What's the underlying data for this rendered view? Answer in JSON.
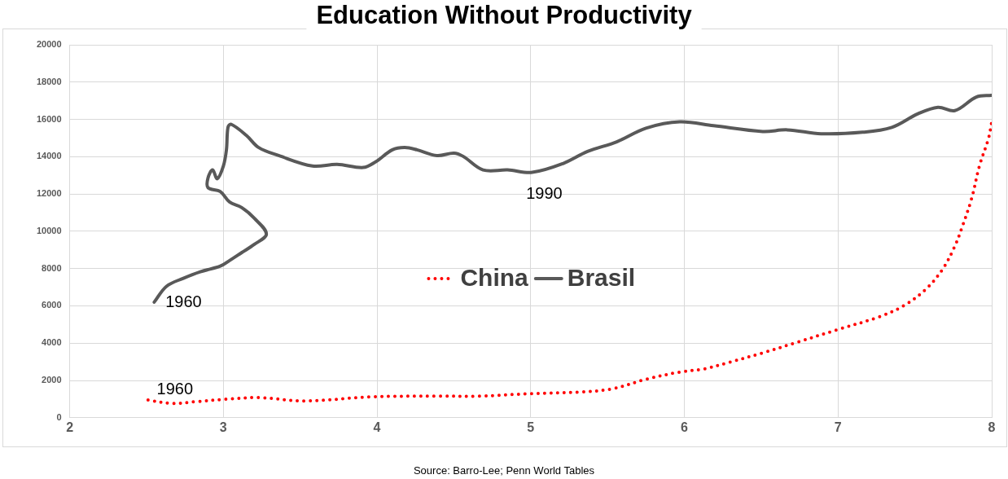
{
  "chart_data": {
    "type": "line",
    "title": "Education Without Productivity",
    "xlim": [
      2,
      8
    ],
    "xticks": [
      2,
      3,
      4,
      5,
      6,
      7,
      8
    ],
    "ylim": [
      0,
      20000
    ],
    "yticks": [
      0,
      2000,
      4000,
      6000,
      8000,
      10000,
      12000,
      14000,
      16000,
      18000,
      20000
    ],
    "grid": true,
    "legend": "center",
    "marker": "none",
    "series": [
      {
        "name": "China",
        "color": "#ff0000",
        "line_style": "dotted",
        "x": [
          2.51,
          2.66,
          2.82,
          3.01,
          3.23,
          3.53,
          3.96,
          4.39,
          4.67,
          4.99,
          5.32,
          5.53,
          5.75,
          5.97,
          6.13,
          6.29,
          6.51,
          6.73,
          7.0,
          7.27,
          7.43,
          7.57,
          7.68,
          7.76,
          7.81,
          7.87,
          7.92,
          7.98,
          8.0
        ],
        "values": [
          950,
          770,
          860,
          990,
          1080,
          900,
          1120,
          1160,
          1160,
          1290,
          1380,
          1550,
          2060,
          2450,
          2620,
          2970,
          3480,
          4040,
          4730,
          5420,
          6020,
          6880,
          7960,
          9200,
          10280,
          11780,
          13500,
          15010,
          15870
        ]
      },
      {
        "name": "Brasil",
        "color": "#595959",
        "line_style": "solid",
        "x": [
          2.55,
          2.63,
          2.74,
          2.85,
          2.98,
          3.04,
          3.12,
          3.2,
          3.28,
          3.2,
          3.12,
          3.04,
          2.98,
          2.9,
          2.9,
          2.93,
          2.96,
          3.0,
          3.02,
          3.03,
          3.05,
          3.15,
          3.23,
          3.36,
          3.58,
          3.74,
          3.91,
          3.99,
          4.1,
          4.18,
          4.26,
          4.39,
          4.5,
          4.56,
          4.69,
          4.85,
          5.01,
          5.21,
          5.37,
          5.56,
          5.75,
          5.97,
          6.19,
          6.51,
          6.67,
          6.89,
          7.16,
          7.35,
          7.52,
          7.65,
          7.76,
          7.9,
          8.0
        ],
        "values": [
          6200,
          7050,
          7480,
          7830,
          8130,
          8430,
          8860,
          9290,
          9850,
          10710,
          11270,
          11570,
          12130,
          12340,
          12860,
          13290,
          12820,
          13500,
          14370,
          15570,
          15740,
          15140,
          14490,
          14060,
          13500,
          13590,
          13420,
          13720,
          14370,
          14490,
          14370,
          14060,
          14190,
          14020,
          13290,
          13290,
          13160,
          13630,
          14280,
          14800,
          15530,
          15870,
          15660,
          15350,
          15440,
          15230,
          15310,
          15570,
          16300,
          16650,
          16470,
          17200,
          17290
        ]
      }
    ],
    "annotations": [
      {
        "text": "1960",
        "x": 2.55,
        "y": 6200
      },
      {
        "text": "1990",
        "x": 4.85,
        "y": 13290
      },
      {
        "text": "1960",
        "x": 2.51,
        "y": 950
      },
      "Source: Barro-Lee; Penn World Tables"
    ]
  }
}
